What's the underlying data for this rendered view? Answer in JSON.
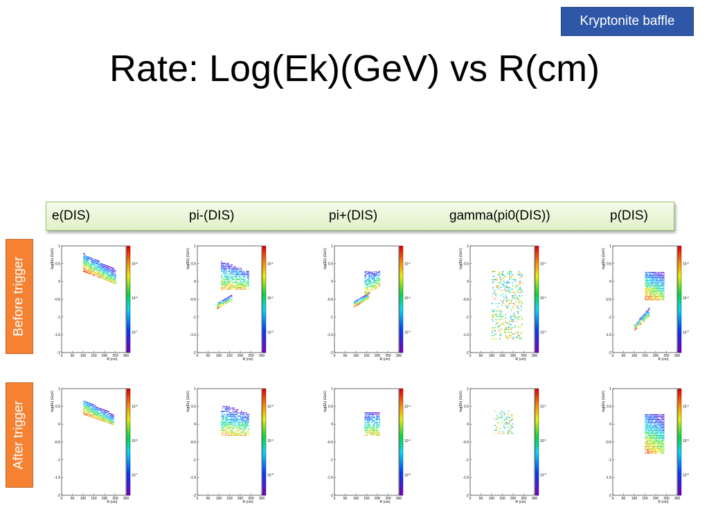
{
  "badge": "Kryptonite baffle",
  "title": "Rate: Log(Ek)(GeV) vs R(cm)",
  "columns": [
    "e(DIS)",
    "pi-(DIS)",
    "pi+(DIS)",
    "gamma(pi0(DIS))",
    "p(DIS)"
  ],
  "rows": [
    "Before trigger",
    "After trigger"
  ],
  "colors": {
    "badge_bg": "#2f57a8",
    "row_label_bg": "#f58233",
    "legend_bg": "#e8f5d6"
  },
  "chart_data": [
    {
      "type": "heatmap",
      "row": "Before trigger",
      "panel": "e(DIS)",
      "xlabel": "R (cm)",
      "ylabel": "log(Ek) (GeV)",
      "xlim": [
        0,
        300
      ],
      "ylim": [
        -2,
        1
      ],
      "xticks": [
        0,
        50,
        100,
        150,
        200,
        250,
        300
      ],
      "yticks": [
        "-2",
        "-1.5",
        "-1",
        "-0.5",
        "0",
        "0.5",
        "1"
      ],
      "z_ticks": [
        "10^-5",
        "10^-6",
        "10^-7"
      ],
      "log_z": true,
      "regions": [
        {
          "r": [
            100,
            250
          ],
          "logEk_at_rmin": [
            0.3,
            0.8
          ],
          "logEk_at_rmax": [
            -0.05,
            0.35
          ],
          "level": "high"
        }
      ]
    },
    {
      "type": "heatmap",
      "row": "Before trigger",
      "panel": "pi-(DIS)",
      "xlabel": "R (cm)",
      "ylabel": "log(Ek) (GeV)",
      "xlim": [
        0,
        300
      ],
      "ylim": [
        -2,
        1
      ],
      "xticks": [
        0,
        50,
        100,
        150,
        200,
        250,
        300
      ],
      "yticks": [
        "-2",
        "-1.5",
        "-1",
        "-0.5",
        "0",
        "0.5",
        "1"
      ],
      "z_ticks": [
        "10^-1",
        "10^-2",
        "10^-3"
      ],
      "log_z": true,
      "regions": [
        {
          "r": [
            110,
            240
          ],
          "logEk_at_rmin": [
            -0.2,
            0.6
          ],
          "logEk_at_rmax": [
            -0.2,
            0.3
          ],
          "level": "medium"
        },
        {
          "r": [
            90,
            160
          ],
          "logEk_at_rmin": [
            -0.75,
            -0.6
          ],
          "logEk_at_rmax": [
            -0.5,
            -0.35
          ],
          "level": "high"
        }
      ]
    },
    {
      "type": "heatmap",
      "row": "Before trigger",
      "panel": "pi+(DIS)",
      "xlabel": "R (cm)",
      "ylabel": "log(Ek) (GeV)",
      "xlim": [
        0,
        300
      ],
      "ylim": [
        -2,
        1
      ],
      "xticks": [
        0,
        50,
        100,
        150,
        200,
        250,
        300
      ],
      "yticks": [
        "-2",
        "-1.5",
        "-1",
        "-0.5",
        "0",
        "0.5",
        "1"
      ],
      "z_ticks": [
        "10^-1",
        "10^-2",
        "10^-3"
      ],
      "log_z": true,
      "regions": [
        {
          "r": [
            140,
            210
          ],
          "logEk_at_rmin": [
            -0.4,
            0.3
          ],
          "logEk_at_rmax": [
            -0.1,
            0.3
          ],
          "level": "medium"
        },
        {
          "r": [
            90,
            160
          ],
          "logEk_at_rmin": [
            -0.7,
            -0.55
          ],
          "logEk_at_rmax": [
            -0.45,
            -0.3
          ],
          "level": "high"
        }
      ]
    },
    {
      "type": "heatmap",
      "row": "Before trigger",
      "panel": "gamma(pi0(DIS))",
      "xlabel": "R (cm)",
      "ylabel": "log(Ek) (GeV)",
      "xlim": [
        0,
        300
      ],
      "ylim": [
        -2,
        1
      ],
      "xticks": [
        0,
        50,
        100,
        150,
        200,
        250,
        300
      ],
      "yticks": [
        "-2",
        "-1.5",
        "-1",
        "-0.5",
        "0",
        "0.5",
        "1"
      ],
      "z_ticks": [
        "10^-1",
        "10^-2",
        "10^-3"
      ],
      "log_z": true,
      "regions": [
        {
          "r": [
            100,
            240
          ],
          "logEk_at_rmin": [
            -1.6,
            0.3
          ],
          "logEk_at_rmax": [
            -1.6,
            0.3
          ],
          "level": "sparse"
        }
      ]
    },
    {
      "type": "heatmap",
      "row": "Before trigger",
      "panel": "p(DIS)",
      "xlabel": "R (cm)",
      "ylabel": "log(Ek) (GeV)",
      "xlim": [
        0,
        300
      ],
      "ylim": [
        -2,
        1
      ],
      "xticks": [
        0,
        50,
        100,
        150,
        200,
        250,
        300
      ],
      "yticks": [
        "-2",
        "-1.5",
        "-1",
        "-0.5",
        "0",
        "0.5",
        "1"
      ],
      "z_ticks": [
        "10^-2",
        "10^-3",
        "10^-4"
      ],
      "log_z": true,
      "regions": [
        {
          "r": [
            150,
            240
          ],
          "logEk_at_rmin": [
            -0.5,
            0.3
          ],
          "logEk_at_rmax": [
            -0.5,
            0.3
          ],
          "level": "high"
        },
        {
          "r": [
            100,
            170
          ],
          "logEk_at_rmin": [
            -1.35,
            -1.2
          ],
          "logEk_at_rmax": [
            -0.95,
            -0.7
          ],
          "level": "high"
        }
      ]
    },
    {
      "type": "heatmap",
      "row": "After trigger",
      "panel": "e(DIS)",
      "xlabel": "R (cm)",
      "ylabel": "log(Ek) (GeV)",
      "xlim": [
        0,
        300
      ],
      "ylim": [
        -2,
        1
      ],
      "xticks": [
        0,
        50,
        100,
        150,
        200,
        250,
        300
      ],
      "yticks": [
        "-2",
        "-1.5",
        "-1",
        "-0.5",
        "0",
        "0.5",
        "1"
      ],
      "z_ticks": [
        "10^-5",
        "10^-6",
        "10^-7"
      ],
      "log_z": true,
      "regions": [
        {
          "r": [
            100,
            240
          ],
          "logEk_at_rmin": [
            0.3,
            0.7
          ],
          "logEk_at_rmax": [
            0.0,
            0.3
          ],
          "level": "high"
        }
      ]
    },
    {
      "type": "heatmap",
      "row": "After trigger",
      "panel": "pi-(DIS)",
      "xlabel": "R (cm)",
      "ylabel": "log(Ek) (GeV)",
      "xlim": [
        0,
        300
      ],
      "ylim": [
        -2,
        1
      ],
      "xticks": [
        0,
        50,
        100,
        150,
        200,
        250,
        300
      ],
      "yticks": [
        "-2",
        "-1.5",
        "-1",
        "-0.5",
        "0",
        "0.5",
        "1"
      ],
      "z_ticks": [
        "10^-3",
        "10^-4",
        "10^-5"
      ],
      "log_z": true,
      "regions": [
        {
          "r": [
            110,
            240
          ],
          "logEk_at_rmin": [
            -0.3,
            0.6
          ],
          "logEk_at_rmax": [
            -0.3,
            0.3
          ],
          "level": "medium"
        }
      ]
    },
    {
      "type": "heatmap",
      "row": "After trigger",
      "panel": "pi+(DIS)",
      "xlabel": "R (cm)",
      "ylabel": "log(Ek) (GeV)",
      "xlim": [
        0,
        300
      ],
      "ylim": [
        -2,
        1
      ],
      "xticks": [
        0,
        50,
        100,
        150,
        200,
        250,
        300
      ],
      "yticks": [
        "-2",
        "-1.5",
        "-1",
        "-0.5",
        "0",
        "0.5",
        "1"
      ],
      "z_ticks": [
        "10^-3",
        "10^-4",
        "10^-5"
      ],
      "log_z": true,
      "regions": [
        {
          "r": [
            140,
            210
          ],
          "logEk_at_rmin": [
            -0.3,
            0.35
          ],
          "logEk_at_rmax": [
            -0.3,
            0.35
          ],
          "level": "medium"
        }
      ]
    },
    {
      "type": "heatmap",
      "row": "After trigger",
      "panel": "gamma(pi0(DIS))",
      "xlabel": "R (cm)",
      "ylabel": "log(Ek) (GeV)",
      "xlim": [
        0,
        300
      ],
      "ylim": [
        -2,
        1
      ],
      "xticks": [
        0,
        50,
        100,
        150,
        200,
        250,
        300
      ],
      "yticks": [
        "-2",
        "-1.5",
        "-1",
        "-0.5",
        "0",
        "0.5",
        "1"
      ],
      "z_ticks": [
        "10^-2",
        "10^-3",
        "10^-4"
      ],
      "log_z": true,
      "regions": [
        {
          "r": [
            110,
            200
          ],
          "logEk_at_rmin": [
            -0.25,
            0.4
          ],
          "logEk_at_rmax": [
            -0.25,
            0.4
          ],
          "level": "sparse"
        }
      ]
    },
    {
      "type": "heatmap",
      "row": "After trigger",
      "panel": "p(DIS)",
      "xlabel": "R (cm)",
      "ylabel": "log(Ek) (GeV)",
      "xlim": [
        0,
        300
      ],
      "ylim": [
        -2,
        1
      ],
      "xticks": [
        0,
        50,
        100,
        150,
        200,
        250,
        300
      ],
      "yticks": [
        "-2",
        "-1.5",
        "-1",
        "-0.5",
        "0",
        "0.5",
        "1"
      ],
      "z_ticks": [
        "10^-4",
        "10^-5",
        "10^-6"
      ],
      "log_z": true,
      "regions": [
        {
          "r": [
            150,
            240
          ],
          "logEk_at_rmin": [
            -0.8,
            0.3
          ],
          "logEk_at_rmax": [
            -0.8,
            0.3
          ],
          "level": "high"
        }
      ]
    }
  ]
}
